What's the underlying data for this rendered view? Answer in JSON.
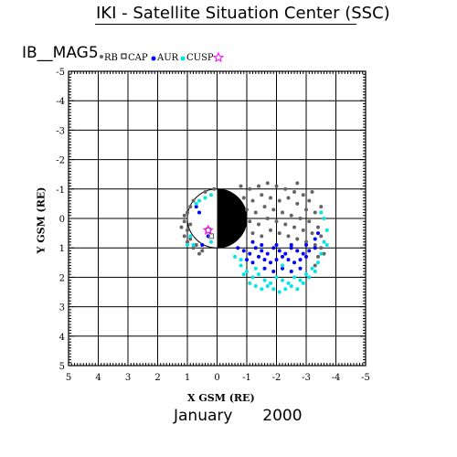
{
  "header": {
    "title": "IKI - Satellite Situation Center (SSC)"
  },
  "satellite": {
    "name": "IB__MAG5"
  },
  "period": {
    "month": "January",
    "year": "2000"
  },
  "colors": {
    "rb": "#646464",
    "cap": "#646464",
    "aur": "#0000ff",
    "cusp": "#00e6e6",
    "star": "#ff00ff",
    "grid": "#000000"
  },
  "chart_data": {
    "type": "scatter",
    "xlabel": "X GSM (RE)",
    "ylabel": "Y GSM (RE)",
    "xlim": [
      5,
      -5
    ],
    "ylim": [
      -5,
      5
    ],
    "x_ticks": [
      "5",
      "4",
      "3",
      "2",
      "1",
      "0",
      "-1",
      "-2",
      "-3",
      "-4",
      "-5"
    ],
    "y_ticks": [
      "-5",
      "-4",
      "-3",
      "-2",
      "-1",
      "0",
      "1",
      "2",
      "3",
      "4",
      "5"
    ],
    "grid": true,
    "legend_position": "top",
    "legend": [
      {
        "label": "RB",
        "marker": "gray-dot",
        "color": "#646464"
      },
      {
        "label": "CAP",
        "marker": "open-square",
        "color": "#646464"
      },
      {
        "label": "AUR",
        "marker": "filled-dot",
        "color": "#0000ff"
      },
      {
        "label": "CUSP",
        "marker": "filled-dot",
        "color": "#00e6e6"
      },
      {
        "label": "",
        "marker": "open-star",
        "color": "#ff00ff"
      }
    ],
    "earth": {
      "radius": 1,
      "night_side": "negative-x"
    },
    "series": [
      {
        "name": "RB",
        "color": "#646464",
        "points": [
          [
            -0.8,
            -1.1
          ],
          [
            -1.1,
            -1.0
          ],
          [
            -1.4,
            -1.1
          ],
          [
            -1.7,
            -1.2
          ],
          [
            -2.0,
            -1.1
          ],
          [
            -2.3,
            -1.0
          ],
          [
            -2.6,
            -0.9
          ],
          [
            -2.9,
            -0.8
          ],
          [
            -3.1,
            -0.6
          ],
          [
            -0.9,
            -0.7
          ],
          [
            -1.2,
            -0.6
          ],
          [
            -1.5,
            -0.8
          ],
          [
            -1.8,
            -0.7
          ],
          [
            -2.1,
            -0.6
          ],
          [
            -2.4,
            -0.7
          ],
          [
            -2.7,
            -0.5
          ],
          [
            -3.0,
            -0.3
          ],
          [
            -3.3,
            -0.2
          ],
          [
            -1.0,
            -0.3
          ],
          [
            -1.3,
            -0.2
          ],
          [
            -1.6,
            -0.4
          ],
          [
            -1.9,
            -0.3
          ],
          [
            -2.2,
            -0.2
          ],
          [
            -2.5,
            -0.1
          ],
          [
            -2.8,
            0.0
          ],
          [
            -3.1,
            0.1
          ],
          [
            -3.4,
            0.3
          ],
          [
            -1.1,
            0.1
          ],
          [
            -1.4,
            0.2
          ],
          [
            -1.7,
            0.0
          ],
          [
            -2.0,
            0.1
          ],
          [
            -2.3,
            0.2
          ],
          [
            -2.6,
            0.3
          ],
          [
            -2.9,
            0.4
          ],
          [
            -3.2,
            0.5
          ],
          [
            -3.5,
            0.6
          ],
          [
            -1.2,
            0.5
          ],
          [
            -1.5,
            0.6
          ],
          [
            -1.8,
            0.4
          ],
          [
            -2.1,
            0.5
          ],
          [
            -2.4,
            0.6
          ],
          [
            -2.7,
            0.7
          ],
          [
            -3.0,
            0.8
          ],
          [
            -3.3,
            0.9
          ],
          [
            -3.5,
            1.0
          ],
          [
            -3.4,
            1.3
          ],
          [
            -3.3,
            1.6
          ],
          [
            -3.6,
            1.2
          ],
          [
            -3.5,
            -0.4
          ],
          [
            -3.2,
            -0.9
          ],
          [
            -2.7,
            -1.2
          ],
          [
            1.0,
            -0.2
          ],
          [
            1.1,
            0.1
          ],
          [
            1.0,
            0.4
          ],
          [
            0.9,
            0.7
          ],
          [
            0.7,
            0.9
          ],
          [
            1.1,
            -0.1
          ],
          [
            0.9,
            0.2
          ],
          [
            1.1,
            0.6
          ],
          [
            0.8,
            1.0
          ],
          [
            0.5,
            1.1
          ],
          [
            1.2,
            0.3
          ],
          [
            1.0,
            0.8
          ],
          [
            0.6,
            1.2
          ],
          [
            0.9,
            -0.4
          ],
          [
            0.4,
            -0.9
          ],
          [
            0.1,
            -1.0
          ],
          [
            0.8,
            -0.6
          ]
        ]
      },
      {
        "name": "AUR",
        "color": "#0000ff",
        "points": [
          [
            -0.7,
            1.0
          ],
          [
            -0.9,
            1.1
          ],
          [
            -1.1,
            1.2
          ],
          [
            -1.3,
            1.0
          ],
          [
            -1.5,
            1.1
          ],
          [
            -1.7,
            1.2
          ],
          [
            -1.9,
            1.0
          ],
          [
            -2.1,
            1.1
          ],
          [
            -2.3,
            1.2
          ],
          [
            -2.5,
            1.0
          ],
          [
            -2.7,
            1.1
          ],
          [
            -2.9,
            1.2
          ],
          [
            -3.1,
            1.1
          ],
          [
            -3.3,
            1.0
          ],
          [
            -1.0,
            1.4
          ],
          [
            -1.2,
            1.5
          ],
          [
            -1.4,
            1.3
          ],
          [
            -1.6,
            1.4
          ],
          [
            -1.8,
            1.5
          ],
          [
            -2.0,
            1.4
          ],
          [
            -2.2,
            1.3
          ],
          [
            -2.4,
            1.4
          ],
          [
            -2.6,
            1.5
          ],
          [
            -2.8,
            1.4
          ],
          [
            -3.0,
            1.3
          ],
          [
            -1.6,
            1.7
          ],
          [
            -1.9,
            1.8
          ],
          [
            -2.2,
            1.7
          ],
          [
            -2.5,
            1.8
          ],
          [
            -2.8,
            1.7
          ],
          [
            -1.5,
            0.9
          ],
          [
            -2.0,
            0.9
          ],
          [
            -2.5,
            0.9
          ],
          [
            -3.0,
            0.9
          ],
          [
            -3.3,
            0.7
          ],
          [
            -3.4,
            0.5
          ],
          [
            -1.2,
            0.8
          ],
          [
            0.7,
            -0.4
          ],
          [
            0.6,
            -0.2
          ],
          [
            0.5,
            0.9
          ],
          [
            0.3,
            0.6
          ]
        ]
      },
      {
        "name": "CUSP",
        "color": "#00e6e6",
        "points": [
          [
            -0.8,
            1.6
          ],
          [
            -1.0,
            1.8
          ],
          [
            -1.2,
            2.0
          ],
          [
            -1.4,
            1.9
          ],
          [
            -1.6,
            2.1
          ],
          [
            -1.8,
            2.2
          ],
          [
            -2.0,
            2.0
          ],
          [
            -2.2,
            2.1
          ],
          [
            -2.4,
            2.2
          ],
          [
            -2.6,
            2.0
          ],
          [
            -2.8,
            2.1
          ],
          [
            -3.0,
            1.9
          ],
          [
            -3.2,
            1.7
          ],
          [
            -3.4,
            1.5
          ],
          [
            -0.9,
            1.9
          ],
          [
            -1.1,
            2.2
          ],
          [
            -1.3,
            2.3
          ],
          [
            -1.5,
            2.4
          ],
          [
            -1.7,
            2.3
          ],
          [
            -1.9,
            2.4
          ],
          [
            -2.1,
            2.5
          ],
          [
            -2.3,
            2.4
          ],
          [
            -2.5,
            2.3
          ],
          [
            -2.7,
            2.4
          ],
          [
            -2.9,
            2.2
          ],
          [
            -3.1,
            2.0
          ],
          [
            -0.6,
            1.3
          ],
          [
            -0.8,
            1.4
          ],
          [
            -3.3,
            1.8
          ],
          [
            -3.5,
            1.2
          ],
          [
            -3.6,
            0.8
          ],
          [
            -3.7,
            0.4
          ],
          [
            -3.6,
            0.0
          ],
          [
            -3.5,
            -0.2
          ],
          [
            -3.7,
            0.9
          ],
          [
            -1.3,
            1.7
          ],
          [
            -2.2,
            1.6
          ],
          [
            0.8,
            0.9
          ],
          [
            0.9,
            0.6
          ],
          [
            1.0,
            0.9
          ],
          [
            0.6,
            -0.6
          ],
          [
            0.2,
            -0.8
          ],
          [
            0.7,
            -0.5
          ],
          [
            0.2,
            0.8
          ],
          [
            0.4,
            -0.7
          ]
        ]
      }
    ],
    "stars": [
      [
        0.3,
        0.4
      ]
    ],
    "cap_squares": [
      [
        0.3,
        0.4
      ],
      [
        0.2,
        0.6
      ]
    ]
  }
}
